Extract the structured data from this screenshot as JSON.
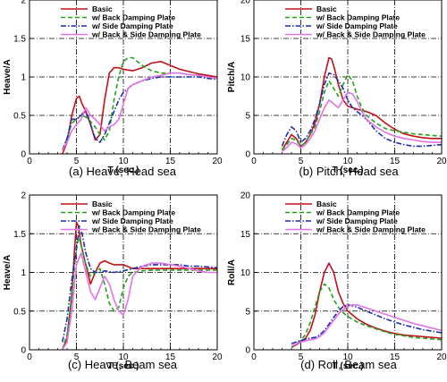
{
  "legend": [
    "Basic",
    "w/ Back Damping Plate",
    "w/ Side Damping Plate",
    "w/ Back & Side Damping Plate"
  ],
  "styles": [
    {
      "color": "#c0121a",
      "dash": ""
    },
    {
      "color": "#22a31d",
      "dash": "5,3"
    },
    {
      "color": "#1d2fb0",
      "dash": "6,2,1.5,2"
    },
    {
      "color": "#e472e8",
      "dash": ""
    }
  ],
  "chart_data": [
    {
      "type": "line",
      "caption": "(a) Heave, Head sea",
      "xlabel": "T (sec.)",
      "ylabel": "Heave/A",
      "xlim": [
        0,
        20
      ],
      "ylim": [
        0,
        2
      ],
      "xticks": [
        0,
        5,
        10,
        15,
        20
      ],
      "yticks": [
        0,
        0.5,
        1,
        1.5,
        2
      ],
      "grid": true,
      "legend_position": "top-right",
      "series": [
        {
          "name": "Basic",
          "x": [
            3.5,
            4.0,
            4.5,
            5.0,
            5.3,
            5.6,
            6.0,
            6.5,
            7.0,
            7.5,
            8.0,
            8.5,
            9.0,
            9.5,
            10.0,
            11,
            12,
            13,
            14,
            15,
            16,
            17,
            18,
            19,
            20
          ],
          "y": [
            0.0,
            0.15,
            0.5,
            0.72,
            0.75,
            0.65,
            0.55,
            0.38,
            0.18,
            0.25,
            0.7,
            1.05,
            1.12,
            1.12,
            1.1,
            1.08,
            1.12,
            1.18,
            1.2,
            1.15,
            1.1,
            1.07,
            1.04,
            1.02,
            1.0
          ]
        },
        {
          "name": "w/ Back Damping Plate",
          "x": [
            3.5,
            4.0,
            4.5,
            5.0,
            5.5,
            6.0,
            6.5,
            7.0,
            7.5,
            8.0,
            8.5,
            9.0,
            9.5,
            10.0,
            10.5,
            11,
            11.5,
            12,
            13,
            14,
            15,
            16,
            17,
            18,
            19,
            20
          ],
          "y": [
            0.05,
            0.2,
            0.4,
            0.45,
            0.5,
            0.48,
            0.42,
            0.35,
            0.25,
            0.18,
            0.3,
            0.7,
            1.0,
            1.2,
            1.25,
            1.25,
            1.2,
            1.15,
            1.08,
            1.05,
            1.05,
            1.05,
            1.03,
            1.02,
            1.0,
            0.98
          ]
        },
        {
          "name": "w/ Side Damping Plate",
          "x": [
            3.5,
            4.0,
            4.5,
            5.0,
            5.5,
            5.8,
            6.2,
            6.6,
            7.0,
            7.5,
            8.0,
            8.5,
            9.0,
            9.5,
            10,
            11,
            12,
            13,
            14,
            15,
            16,
            17,
            18,
            19,
            20
          ],
          "y": [
            0.05,
            0.2,
            0.45,
            0.45,
            0.5,
            0.55,
            0.5,
            0.35,
            0.2,
            0.15,
            0.25,
            0.4,
            0.55,
            0.7,
            0.8,
            0.9,
            0.95,
            0.98,
            1.0,
            1.0,
            1.0,
            1.0,
            1.0,
            0.98,
            0.97
          ]
        },
        {
          "name": "w/ Back & Side Damping Plate",
          "x": [
            3.5,
            4.0,
            4.5,
            5.0,
            5.5,
            6.0,
            6.5,
            7.0,
            7.5,
            8.0,
            8.5,
            9.0,
            9.5,
            10,
            10.5,
            11,
            12,
            13,
            14,
            15,
            16,
            17,
            18,
            19,
            20
          ],
          "y": [
            0.05,
            0.15,
            0.3,
            0.38,
            0.45,
            0.6,
            0.5,
            0.45,
            0.38,
            0.3,
            0.35,
            0.38,
            0.45,
            0.65,
            0.85,
            0.9,
            0.95,
            1.0,
            1.02,
            1.05,
            1.05,
            1.03,
            1.02,
            1.0,
            0.98
          ]
        }
      ]
    },
    {
      "type": "line",
      "caption": "(b) Pitch, Head sea",
      "xlabel": "T (sec.)",
      "ylabel": "Pitch/A",
      "xlim": [
        0,
        20
      ],
      "ylim": [
        0,
        20
      ],
      "xticks": [
        0,
        5,
        10,
        15,
        20
      ],
      "yticks": [
        0,
        5,
        10,
        15,
        20
      ],
      "grid": true,
      "legend_position": "top-right",
      "series": [
        {
          "name": "Basic",
          "x": [
            3.0,
            3.5,
            4.0,
            4.5,
            5.0,
            5.5,
            6.0,
            6.5,
            7.0,
            7.5,
            8.0,
            8.3,
            8.6,
            9.0,
            9.5,
            10,
            10.5,
            11,
            12,
            13,
            14,
            15,
            16,
            17,
            18,
            19,
            20
          ],
          "y": [
            0.5,
            1.5,
            2.5,
            2.0,
            1.0,
            1.5,
            2.5,
            4.0,
            6.5,
            10.0,
            12.5,
            12.3,
            11.0,
            9.0,
            7.0,
            6.2,
            6.0,
            5.8,
            5.5,
            5.0,
            4.0,
            3.2,
            2.6,
            2.3,
            2.1,
            2.0,
            2.0
          ]
        },
        {
          "name": "w/ Back Damping Plate",
          "x": [
            3.0,
            3.5,
            4.0,
            4.5,
            5.0,
            5.5,
            6.0,
            6.5,
            7.0,
            7.5,
            8.0,
            8.5,
            9.0,
            9.5,
            10,
            10.5,
            11,
            11.5,
            12,
            13,
            14,
            15,
            16,
            17,
            18,
            19,
            20
          ],
          "y": [
            0.5,
            1.2,
            2.0,
            1.8,
            1.0,
            1.5,
            2.5,
            3.5,
            5.5,
            8.0,
            9.5,
            8.5,
            7.5,
            9.0,
            10.3,
            9.5,
            7.5,
            6.0,
            5.0,
            4.0,
            3.3,
            3.0,
            2.8,
            2.6,
            2.5,
            2.4,
            2.3
          ]
        },
        {
          "name": "w/ Side Damping Plate",
          "x": [
            3.0,
            3.5,
            4.0,
            4.5,
            5.0,
            5.5,
            6.0,
            6.5,
            7.0,
            7.5,
            8.0,
            8.5,
            9.0,
            9.5,
            10,
            10.5,
            11,
            11.5,
            12,
            13,
            14,
            15,
            16,
            17,
            18,
            19,
            20
          ],
          "y": [
            1.0,
            2.5,
            3.5,
            3.0,
            1.5,
            2.0,
            3.0,
            4.5,
            6.5,
            9.0,
            10.5,
            10.3,
            9.5,
            8.5,
            7.0,
            6.0,
            5.5,
            5.0,
            4.5,
            3.0,
            2.0,
            1.5,
            1.2,
            1.0,
            1.0,
            1.1,
            1.2
          ]
        },
        {
          "name": "w/ Back & Side Damping Plate",
          "x": [
            3.0,
            3.5,
            4.0,
            4.5,
            5.0,
            5.5,
            6.0,
            6.5,
            7.0,
            7.5,
            8.0,
            8.5,
            9.0,
            9.5,
            10,
            10.5,
            11,
            11.5,
            12,
            13,
            14,
            15,
            16,
            17,
            18,
            19,
            20
          ],
          "y": [
            0.3,
            0.8,
            1.5,
            1.3,
            0.8,
            1.2,
            2.0,
            3.0,
            4.5,
            6.0,
            7.0,
            6.5,
            6.0,
            7.0,
            8.0,
            7.8,
            6.8,
            5.5,
            4.5,
            3.5,
            2.8,
            2.3,
            2.0,
            1.8,
            1.6,
            1.5,
            1.5
          ]
        }
      ]
    },
    {
      "type": "line",
      "caption": "(c) Heave, Beam sea",
      "xlabel": "T (sec.)",
      "ylabel": "Heave/A",
      "xlim": [
        0,
        20
      ],
      "ylim": [
        0,
        2
      ],
      "xticks": [
        0,
        5,
        10,
        15,
        20
      ],
      "yticks": [
        0,
        0.5,
        1,
        1.5,
        2
      ],
      "grid": true,
      "legend_position": "top-right",
      "series": [
        {
          "name": "Basic",
          "x": [
            3.5,
            4.0,
            4.5,
            4.8,
            5.0,
            5.2,
            5.5,
            6.0,
            6.5,
            7.0,
            7.5,
            8.0,
            8.5,
            9,
            10,
            11,
            12,
            13,
            14,
            15,
            16,
            17,
            18,
            19,
            20
          ],
          "y": [
            0.0,
            0.15,
            0.7,
            1.3,
            1.65,
            1.6,
            1.35,
            1.1,
            0.85,
            1.0,
            1.12,
            1.15,
            1.12,
            1.1,
            1.1,
            1.05,
            1.05,
            1.05,
            1.05,
            1.05,
            1.05,
            1.05,
            1.05,
            1.05,
            1.05
          ]
        },
        {
          "name": "w/ Back Damping Plate",
          "x": [
            3.5,
            4.0,
            4.5,
            5.0,
            5.3,
            5.6,
            6.0,
            6.5,
            7.0,
            7.5,
            8.0,
            8.5,
            9.0,
            9.5,
            10,
            10.5,
            11,
            12,
            13,
            14,
            15,
            16,
            17,
            18,
            19,
            20
          ],
          "y": [
            0.0,
            0.2,
            0.7,
            1.35,
            1.45,
            1.3,
            1.1,
            0.95,
            1.0,
            1.05,
            0.85,
            0.6,
            0.5,
            0.55,
            0.8,
            0.95,
            1.0,
            1.02,
            1.03,
            1.03,
            1.03,
            1.03,
            1.03,
            1.03,
            1.03,
            1.03
          ]
        },
        {
          "name": "w/ Side Damping Plate",
          "x": [
            3.5,
            4.0,
            4.5,
            5.0,
            5.3,
            5.6,
            6.0,
            6.5,
            7.0,
            7.5,
            8.0,
            9,
            10,
            11,
            12,
            13,
            14,
            15,
            16,
            17,
            18,
            19,
            20
          ],
          "y": [
            0.1,
            0.4,
            0.9,
            1.3,
            1.6,
            1.5,
            1.25,
            1.05,
            1.0,
            1.0,
            1.02,
            1.0,
            1.02,
            1.05,
            1.08,
            1.1,
            1.1,
            1.1,
            1.1,
            1.08,
            1.08,
            1.07,
            1.06
          ]
        },
        {
          "name": "w/ Back & Side Damping Plate",
          "x": [
            3.5,
            4.0,
            4.5,
            5.0,
            5.5,
            6.0,
            6.5,
            7.0,
            7.5,
            8.0,
            8.5,
            9.0,
            9.5,
            10,
            10.5,
            11,
            12,
            13,
            14,
            15,
            16,
            17,
            18,
            19,
            20
          ],
          "y": [
            0.0,
            0.1,
            0.5,
            1.1,
            1.25,
            1.0,
            0.75,
            0.65,
            0.8,
            0.95,
            0.85,
            0.65,
            0.5,
            0.45,
            0.65,
            0.95,
            1.08,
            1.12,
            1.12,
            1.1,
            1.08,
            1.05,
            1.02,
            1.0,
            1.0
          ]
        }
      ]
    },
    {
      "type": "line",
      "caption": "(d) Roll, Beam sea",
      "xlabel": "T (sec.)",
      "ylabel": "Roll/A",
      "xlim": [
        0,
        20
      ],
      "ylim": [
        0,
        20
      ],
      "xticks": [
        0,
        5,
        10,
        15,
        20
      ],
      "yticks": [
        0,
        5,
        10,
        15,
        20
      ],
      "grid": true,
      "legend_position": "top-right",
      "series": [
        {
          "name": "Basic",
          "x": [
            4,
            5,
            5.5,
            6,
            6.5,
            7,
            7.5,
            8,
            8.5,
            9,
            9.5,
            10,
            11,
            12,
            13,
            14,
            15,
            16,
            17,
            18,
            19,
            20
          ],
          "y": [
            0.3,
            1.0,
            1.5,
            2.5,
            4.5,
            7.5,
            10.0,
            11.2,
            10.0,
            7.5,
            6.0,
            5.0,
            4.0,
            3.3,
            2.8,
            2.4,
            2.1,
            1.9,
            1.8,
            1.7,
            1.6,
            1.5
          ]
        },
        {
          "name": "w/ Back Damping Plate",
          "x": [
            4,
            5,
            5.5,
            6,
            6.5,
            7,
            7.5,
            8,
            8.5,
            9,
            9.5,
            10,
            11,
            12,
            13,
            14,
            15,
            16,
            17,
            18,
            19,
            20
          ],
          "y": [
            0.3,
            1.2,
            2.0,
            3.5,
            5.5,
            7.5,
            8.5,
            8.0,
            6.5,
            5.5,
            4.8,
            4.3,
            3.6,
            3.1,
            2.7,
            2.3,
            2.0,
            1.8,
            1.6,
            1.5,
            1.4,
            1.3
          ]
        },
        {
          "name": "w/ Side Damping Plate",
          "x": [
            4,
            5,
            6,
            6.5,
            7,
            7.5,
            8,
            8.5,
            9,
            9.5,
            10,
            10.5,
            11,
            12,
            13,
            14,
            15,
            16,
            17,
            18,
            19,
            20
          ],
          "y": [
            0.8,
            1.2,
            1.5,
            1.6,
            1.9,
            2.5,
            3.3,
            4.2,
            5.0,
            5.6,
            5.8,
            5.7,
            5.5,
            5.0,
            4.5,
            4.0,
            3.6,
            3.2,
            2.9,
            2.6,
            2.4,
            2.2
          ]
        },
        {
          "name": "w/ Back & Side Damping Plate",
          "x": [
            4,
            5,
            6,
            6.5,
            7,
            7.5,
            8,
            8.5,
            9,
            9.5,
            10,
            10.5,
            11,
            12,
            13,
            14,
            15,
            16,
            17,
            18,
            19,
            20
          ],
          "y": [
            0.5,
            1.0,
            1.3,
            1.4,
            1.7,
            2.2,
            3.0,
            3.8,
            4.6,
            5.2,
            5.6,
            5.8,
            5.8,
            5.4,
            5.0,
            4.6,
            4.2,
            3.8,
            3.4,
            3.1,
            2.8,
            2.5
          ]
        }
      ]
    }
  ]
}
